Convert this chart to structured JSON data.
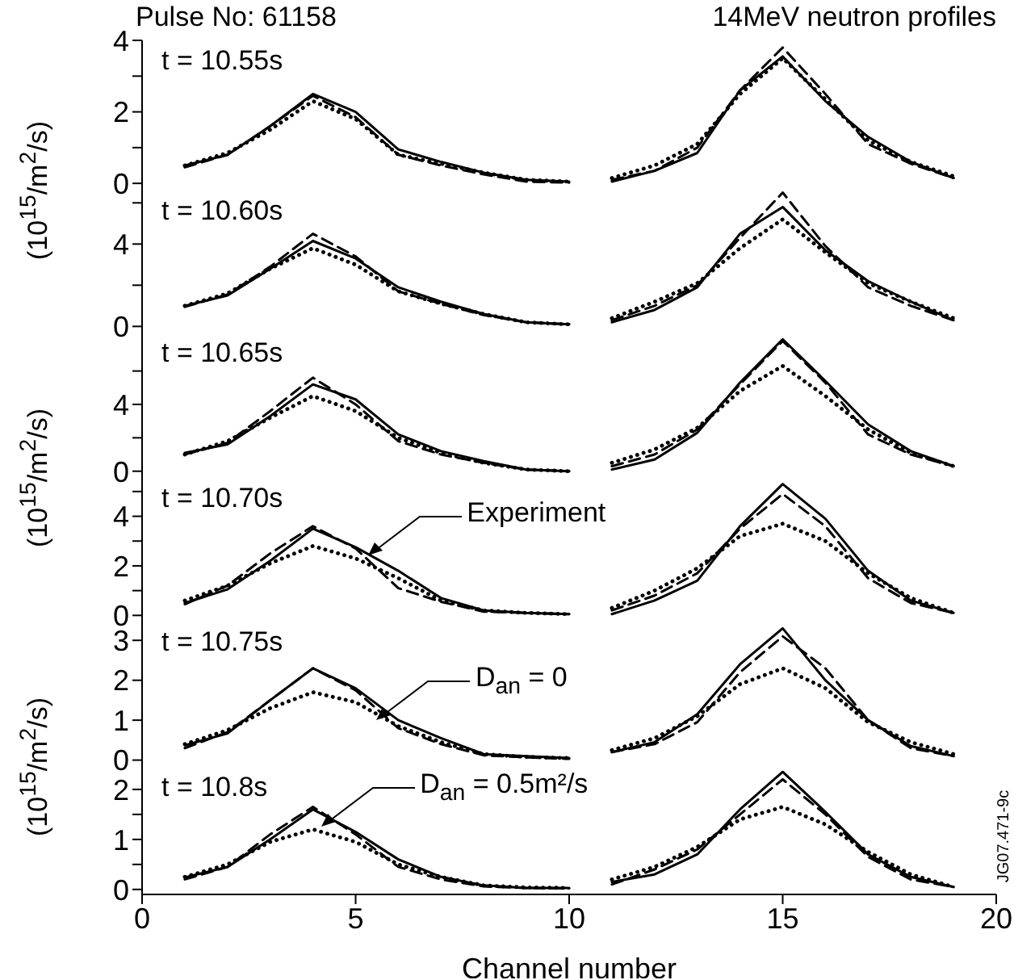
{
  "chart_data": [
    {
      "type": "line",
      "title": "Pulse No: 61158",
      "subtitle": "14MeV neutron profiles",
      "ylabel": "(10$^{15}$/m$^{2}$/s)",
      "annotations": [
        "t = 10.55s"
      ],
      "xlim": [
        0,
        20
      ],
      "xticks": [
        0,
        5,
        10,
        15,
        20
      ],
      "ylim": [
        -0.2,
        4
      ],
      "yticks": [
        0,
        {
          "value": 1,
          "label": null
        },
        2,
        {
          "value": 3,
          "label": null
        },
        4
      ],
      "tick_labels": "y",
      "series": [
        {
          "color": "#000000",
          "line_style": "solid",
          "x": [
            1,
            2,
            3,
            4,
            5,
            6,
            7,
            8,
            9,
            10
          ],
          "values": [
            0.5,
            0.8,
            1.6,
            2.5,
            2.0,
            0.95,
            0.6,
            0.3,
            0.1,
            0.05
          ]
        },
        {
          "color": "#000000",
          "line_style": "dashed",
          "x": [
            1,
            2,
            3,
            4,
            5,
            6,
            7,
            8,
            9,
            10
          ],
          "values": [
            0.45,
            0.8,
            1.6,
            2.45,
            1.85,
            0.8,
            0.5,
            0.25,
            0.05,
            0.02
          ]
        },
        {
          "color": "#000000",
          "line_style": "dotted",
          "x": [
            1,
            2,
            3,
            4,
            5,
            6,
            7,
            8,
            9,
            10
          ],
          "values": [
            0.5,
            0.85,
            1.5,
            2.3,
            1.8,
            0.8,
            0.55,
            0.3,
            0.1,
            0.05
          ]
        },
        {
          "color": "#000000",
          "line_style": "solid",
          "x": [
            11,
            12,
            13,
            14,
            15,
            16,
            17,
            18,
            19
          ],
          "values": [
            0.05,
            0.35,
            0.85,
            2.6,
            3.55,
            2.3,
            1.3,
            0.6,
            0.15
          ]
        },
        {
          "color": "#000000",
          "line_style": "dashed",
          "x": [
            11,
            12,
            13,
            14,
            15,
            16,
            17,
            18,
            19
          ],
          "values": [
            0.1,
            0.35,
            1.0,
            2.6,
            3.8,
            2.5,
            1.1,
            0.55,
            0.15
          ]
        },
        {
          "color": "#000000",
          "line_style": "dotted",
          "x": [
            11,
            12,
            13,
            14,
            15,
            16,
            17,
            18,
            19
          ],
          "values": [
            0.15,
            0.5,
            1.1,
            2.5,
            3.5,
            2.35,
            1.2,
            0.6,
            0.2
          ]
        }
      ]
    },
    {
      "type": "line",
      "annotations": [
        "t = 10.60s"
      ],
      "xlim": [
        0,
        20
      ],
      "xticks": [
        0,
        5,
        10,
        15,
        20
      ],
      "ylim": [
        -0.3,
        6.6
      ],
      "yticks": [
        0,
        {
          "value": 2,
          "label": null
        },
        4,
        {
          "value": 6,
          "label": null
        }
      ],
      "tick_labels": "y",
      "series": [
        {
          "color": "#000000",
          "line_style": "solid",
          "x": [
            1,
            2,
            3,
            4,
            5,
            6,
            7,
            8,
            9,
            10
          ],
          "values": [
            1.0,
            1.5,
            2.8,
            4.15,
            3.3,
            1.9,
            1.2,
            0.6,
            0.2,
            0.1
          ]
        },
        {
          "color": "#000000",
          "line_style": "dashed",
          "x": [
            1,
            2,
            3,
            4,
            5,
            6,
            7,
            8,
            9,
            10
          ],
          "values": [
            0.95,
            1.55,
            2.9,
            4.5,
            3.4,
            1.7,
            1.1,
            0.55,
            0.2,
            0.1
          ]
        },
        {
          "color": "#000000",
          "line_style": "dotted",
          "x": [
            1,
            2,
            3,
            4,
            5,
            6,
            7,
            8,
            9,
            10
          ],
          "values": [
            1.0,
            1.6,
            2.8,
            3.8,
            3.0,
            1.7,
            1.1,
            0.6,
            0.2,
            0.1
          ]
        },
        {
          "color": "#000000",
          "line_style": "solid",
          "x": [
            11,
            12,
            13,
            14,
            15,
            16,
            17,
            18,
            19
          ],
          "values": [
            0.2,
            0.8,
            1.9,
            4.5,
            5.8,
            3.7,
            2.2,
            1.2,
            0.3
          ]
        },
        {
          "color": "#000000",
          "line_style": "dashed",
          "x": [
            11,
            12,
            13,
            14,
            15,
            16,
            17,
            18,
            19
          ],
          "values": [
            0.3,
            1.0,
            2.0,
            4.3,
            6.5,
            3.9,
            1.9,
            1.0,
            0.3
          ]
        },
        {
          "color": "#000000",
          "line_style": "dotted",
          "x": [
            11,
            12,
            13,
            14,
            15,
            16,
            17,
            18,
            19
          ],
          "values": [
            0.4,
            1.2,
            2.1,
            3.8,
            5.2,
            3.6,
            2.1,
            1.2,
            0.4
          ]
        }
      ]
    },
    {
      "type": "line",
      "ylabel": "(10$^{15}$/m$^{2}$/s)",
      "annotations": [
        "t = 10.65s"
      ],
      "xlim": [
        0,
        20
      ],
      "xticks": [
        0,
        5,
        10,
        15,
        20
      ],
      "ylim": [
        -0.4,
        8.3
      ],
      "yticks": [
        0,
        {
          "value": 2,
          "label": null
        },
        4,
        {
          "value": 6,
          "label": null
        }
      ],
      "tick_labels": "y",
      "series": [
        {
          "color": "#000000",
          "line_style": "solid",
          "x": [
            1,
            2,
            3,
            4,
            5,
            6,
            7,
            8,
            9,
            10
          ],
          "values": [
            1.1,
            1.6,
            3.3,
            5.2,
            4.3,
            2.2,
            1.2,
            0.6,
            0.1,
            0.0
          ]
        },
        {
          "color": "#000000",
          "line_style": "dashed",
          "x": [
            1,
            2,
            3,
            4,
            5,
            6,
            7,
            8,
            9,
            10
          ],
          "values": [
            1.0,
            1.7,
            3.6,
            5.6,
            4.0,
            1.8,
            1.0,
            0.5,
            0.1,
            0.0
          ]
        },
        {
          "color": "#000000",
          "line_style": "dotted",
          "x": [
            1,
            2,
            3,
            4,
            5,
            6,
            7,
            8,
            9,
            10
          ],
          "values": [
            1.0,
            1.8,
            3.2,
            4.5,
            3.6,
            2.0,
            1.1,
            0.5,
            0.1,
            0.0
          ]
        },
        {
          "color": "#000000",
          "line_style": "solid",
          "x": [
            11,
            12,
            13,
            14,
            15,
            16,
            17,
            18,
            19
          ],
          "values": [
            0.1,
            0.7,
            2.3,
            5.3,
            7.9,
            5.4,
            2.8,
            1.2,
            0.3
          ]
        },
        {
          "color": "#000000",
          "line_style": "dashed",
          "x": [
            11,
            12,
            13,
            14,
            15,
            16,
            17,
            18,
            19
          ],
          "values": [
            0.3,
            1.0,
            2.5,
            5.2,
            7.8,
            5.3,
            2.2,
            1.0,
            0.3
          ]
        },
        {
          "color": "#000000",
          "line_style": "dotted",
          "x": [
            11,
            12,
            13,
            14,
            15,
            16,
            17,
            18,
            19
          ],
          "values": [
            0.5,
            1.3,
            2.6,
            4.8,
            6.3,
            4.5,
            2.5,
            1.1,
            0.3
          ]
        }
      ]
    },
    {
      "type": "line",
      "annotations": [
        "t = 10.70s",
        {
          "text": "Experiment",
          "x": 5.3,
          "y": 2.4
        }
      ],
      "xlim": [
        0,
        20
      ],
      "xticks": [
        0,
        5,
        10,
        15,
        20
      ],
      "ylim": [
        -0.25,
        5.55
      ],
      "yticks": [
        0,
        {
          "value": 1,
          "label": null
        },
        2,
        {
          "value": 3,
          "label": null
        },
        4,
        {
          "value": 5,
          "label": null
        }
      ],
      "tick_labels": "y",
      "series": [
        {
          "color": "#000000",
          "line_style": "solid",
          "x": [
            1,
            2,
            3,
            4,
            5,
            6,
            7,
            8,
            9,
            10
          ],
          "values": [
            0.5,
            1.05,
            2.2,
            3.5,
            2.75,
            1.8,
            0.7,
            0.2,
            0.1,
            0.05
          ]
        },
        {
          "color": "#000000",
          "line_style": "dashed",
          "x": [
            1,
            2,
            3,
            4,
            5,
            6,
            7,
            8,
            9,
            10
          ],
          "values": [
            0.45,
            1.2,
            2.5,
            3.6,
            2.7,
            1.1,
            0.55,
            0.15,
            0.1,
            0.05
          ]
        },
        {
          "color": "#000000",
          "line_style": "dotted",
          "x": [
            1,
            2,
            3,
            4,
            5,
            6,
            7,
            8,
            9,
            10
          ],
          "values": [
            0.6,
            1.2,
            2.1,
            2.8,
            2.3,
            1.5,
            0.6,
            0.2,
            0.1,
            0.05
          ]
        },
        {
          "color": "#000000",
          "line_style": "solid",
          "x": [
            11,
            12,
            13,
            14,
            15,
            16,
            17,
            18,
            19
          ],
          "values": [
            0.05,
            0.6,
            1.4,
            3.6,
            5.3,
            3.9,
            1.8,
            0.6,
            0.1
          ]
        },
        {
          "color": "#000000",
          "line_style": "dashed",
          "x": [
            11,
            12,
            13,
            14,
            15,
            16,
            17,
            18,
            19
          ],
          "values": [
            0.2,
            0.8,
            1.7,
            3.5,
            4.9,
            3.6,
            1.5,
            0.5,
            0.1
          ]
        },
        {
          "color": "#000000",
          "line_style": "dotted",
          "x": [
            11,
            12,
            13,
            14,
            15,
            16,
            17,
            18,
            19
          ],
          "values": [
            0.3,
            1.0,
            1.9,
            3.2,
            3.7,
            3.0,
            1.7,
            0.7,
            0.1
          ]
        }
      ]
    },
    {
      "type": "line",
      "ylabel": "(10$^{15}$/m$^{2}$/s)",
      "annotations": [
        "t = 10.75s",
        {
          "text": "D$_{an}$ = 0",
          "x": 5.5,
          "y": 1.0
        }
      ],
      "xlim": [
        0,
        20
      ],
      "xticks": [
        0,
        5,
        10,
        15,
        20
      ],
      "ylim": [
        -0.17,
        3.47
      ],
      "yticks": [
        0,
        1,
        2,
        3
      ],
      "tick_labels": "y",
      "series": [
        {
          "color": "#000000",
          "line_style": "solid",
          "x": [
            1,
            2,
            3,
            4,
            5,
            6,
            7,
            8,
            9,
            10
          ],
          "values": [
            0.37,
            0.67,
            1.5,
            2.3,
            1.8,
            1.0,
            0.55,
            0.15,
            0.1,
            0.05
          ]
        },
        {
          "color": "#000000",
          "line_style": "dashed",
          "x": [
            1,
            2,
            3,
            4,
            5,
            6,
            7,
            8,
            9,
            10
          ],
          "values": [
            0.3,
            0.7,
            1.5,
            2.3,
            1.75,
            0.8,
            0.4,
            0.12,
            0.07,
            0.03
          ]
        },
        {
          "color": "#000000",
          "line_style": "dotted",
          "x": [
            1,
            2,
            3,
            4,
            5,
            6,
            7,
            8,
            9,
            10
          ],
          "values": [
            0.4,
            0.75,
            1.3,
            1.7,
            1.45,
            0.85,
            0.45,
            0.15,
            0.08,
            0.05
          ]
        },
        {
          "color": "#000000",
          "line_style": "solid",
          "x": [
            11,
            12,
            13,
            14,
            15,
            16,
            17,
            18,
            19
          ],
          "values": [
            0.2,
            0.45,
            1.15,
            2.4,
            3.3,
            2.0,
            1.0,
            0.35,
            0.1
          ]
        },
        {
          "color": "#000000",
          "line_style": "dashed",
          "x": [
            11,
            12,
            13,
            14,
            15,
            16,
            17,
            18,
            19
          ],
          "values": [
            0.2,
            0.4,
            0.95,
            2.2,
            3.1,
            2.3,
            1.0,
            0.3,
            0.1
          ]
        },
        {
          "color": "#000000",
          "line_style": "dotted",
          "x": [
            11,
            12,
            13,
            14,
            15,
            16,
            17,
            18,
            19
          ],
          "values": [
            0.25,
            0.55,
            1.1,
            1.9,
            2.3,
            1.8,
            0.95,
            0.45,
            0.15
          ]
        }
      ]
    },
    {
      "type": "line",
      "xlabel": "Channel number",
      "annotations": [
        "t = 10.8s",
        {
          "text": "D$_{an}$ = 0.5m²/s",
          "x": 4.2,
          "y": 1.25
        },
        "JG07.471-9c"
      ],
      "xlim": [
        0,
        20
      ],
      "xticks": [
        0,
        5,
        10,
        15,
        20
      ],
      "ylim": [
        -0.1,
        2.45
      ],
      "yticks": [
        0,
        {
          "value": 0.5,
          "label": null
        },
        1,
        {
          "value": 1.5,
          "label": null
        },
        2
      ],
      "series": [
        {
          "color": "#000000",
          "line_style": "solid",
          "x": [
            1,
            2,
            3,
            4,
            5,
            6,
            7,
            8,
            9,
            10
          ],
          "values": [
            0.24,
            0.45,
            1.0,
            1.6,
            1.15,
            0.6,
            0.25,
            0.08,
            0.03,
            0.03
          ]
        },
        {
          "color": "#000000",
          "line_style": "dashed",
          "x": [
            1,
            2,
            3,
            4,
            5,
            6,
            7,
            8,
            9,
            10
          ],
          "values": [
            0.2,
            0.45,
            1.1,
            1.65,
            1.1,
            0.45,
            0.2,
            0.06,
            0.03,
            0.02
          ]
        },
        {
          "color": "#000000",
          "line_style": "dotted",
          "x": [
            1,
            2,
            3,
            4,
            5,
            6,
            7,
            8,
            9,
            10
          ],
          "values": [
            0.25,
            0.5,
            0.95,
            1.2,
            0.95,
            0.5,
            0.25,
            0.08,
            0.04,
            0.03
          ]
        },
        {
          "color": "#000000",
          "line_style": "solid",
          "x": [
            11,
            12,
            13,
            14,
            15,
            16,
            17,
            18,
            19
          ],
          "values": [
            0.15,
            0.3,
            0.7,
            1.6,
            2.35,
            1.55,
            0.7,
            0.25,
            0.05
          ]
        },
        {
          "color": "#000000",
          "line_style": "dashed",
          "x": [
            11,
            12,
            13,
            14,
            15,
            16,
            17,
            18,
            19
          ],
          "values": [
            0.1,
            0.4,
            0.8,
            1.5,
            2.2,
            1.5,
            0.65,
            0.2,
            0.05
          ]
        },
        {
          "color": "#000000",
          "line_style": "dotted",
          "x": [
            11,
            12,
            13,
            14,
            15,
            16,
            17,
            18,
            19
          ],
          "values": [
            0.2,
            0.45,
            0.85,
            1.4,
            1.65,
            1.3,
            0.75,
            0.3,
            0.05
          ]
        }
      ]
    }
  ]
}
